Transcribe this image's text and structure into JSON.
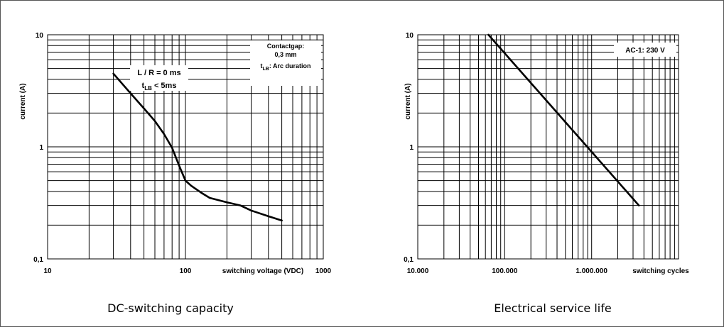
{
  "chart_data": [
    {
      "type": "line",
      "scale": "log-log",
      "xlim": [
        10,
        1000
      ],
      "ylim": [
        0.1,
        10
      ],
      "xlabel": "switching voltage (VDC)",
      "ylabel": "current (A)",
      "x_ticks": [
        "10",
        "100",
        "1000"
      ],
      "y_ticks": [
        "0,1",
        "1",
        "10"
      ],
      "grid": true,
      "caption": "DC-switching capacity",
      "annotation_lines": [
        "Contactgap:",
        "0,3 mm",
        "t_LB: Arc duration"
      ],
      "curve_label": [
        "L / R = 0 ms",
        "t_LB < 5ms"
      ],
      "series": [
        {
          "x": [
            30,
            40,
            50,
            60,
            70,
            80,
            90,
            100,
            110,
            130,
            150,
            200,
            250,
            300,
            400,
            500
          ],
          "y": [
            4.5,
            3.0,
            2.2,
            1.7,
            1.3,
            0.98,
            0.68,
            0.5,
            0.45,
            0.39,
            0.35,
            0.32,
            0.3,
            0.27,
            0.24,
            0.22
          ]
        }
      ]
    },
    {
      "type": "line",
      "scale": "log-log",
      "xlim": [
        10000,
        10000000
      ],
      "ylim": [
        0.1,
        10
      ],
      "xlabel": "switching cycles",
      "ylabel": "current (A)",
      "x_ticks": [
        "10.000",
        "100.000",
        "1.000.000"
      ],
      "y_ticks": [
        "0,1",
        "1",
        "10"
      ],
      "grid": true,
      "caption": "Electrical service life",
      "annotation_lines": [
        "AC-1: 230 V"
      ],
      "series": [
        {
          "x": [
            65000,
            3500000
          ],
          "y": [
            10,
            0.3
          ]
        }
      ]
    }
  ]
}
